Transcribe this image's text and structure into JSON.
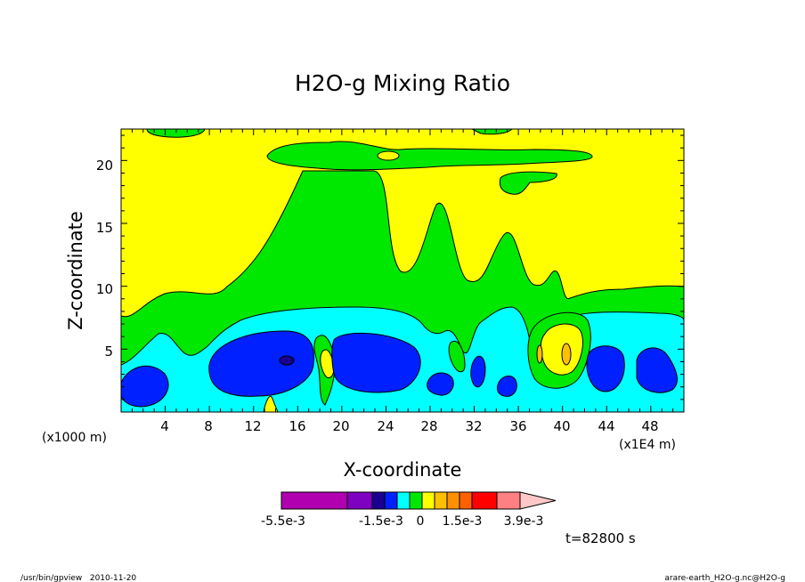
{
  "chart_data": {
    "type": "heatmap",
    "title": "H2O-g Mixing Ratio",
    "xlabel": "X-coordinate",
    "ylabel": "Z-coordinate",
    "x_ticks": [
      "4",
      "8",
      "12",
      "16",
      "20",
      "24",
      "28",
      "32",
      "36",
      "40",
      "44",
      "48"
    ],
    "y_ticks": [
      "5",
      "10",
      "15",
      "20"
    ],
    "x_units_left": "(x1000 m)",
    "x_units_right": "(x1E4 m)",
    "xlim": [
      0,
      51
    ],
    "ylim": [
      0,
      22.5
    ],
    "colorbar": {
      "labels": [
        "-5.5e-3",
        "-1.5e-3",
        "0",
        "1.5e-3",
        "3.9e-3"
      ],
      "colors": [
        "#b000b0",
        "#7e00c0",
        "#1a0090",
        "#0020ff",
        "#00ffff",
        "#00e800",
        "#ffff00",
        "#ffc000",
        "#ff9000",
        "#ff6000",
        "#ff0000",
        "#ff8080",
        "#ffc8c8"
      ]
    },
    "regions": {
      "background": "#ffff00",
      "green": "#00e800",
      "cyan": "#00ffff",
      "blue": "#0020ff",
      "darkblue": "#1a0090"
    }
  },
  "footer": {
    "time_label": "t=82800 s",
    "program": "/usr/bin/gpview   2010-11-20",
    "file": "arare-earth_H2O-g.nc@H2O-g"
  }
}
